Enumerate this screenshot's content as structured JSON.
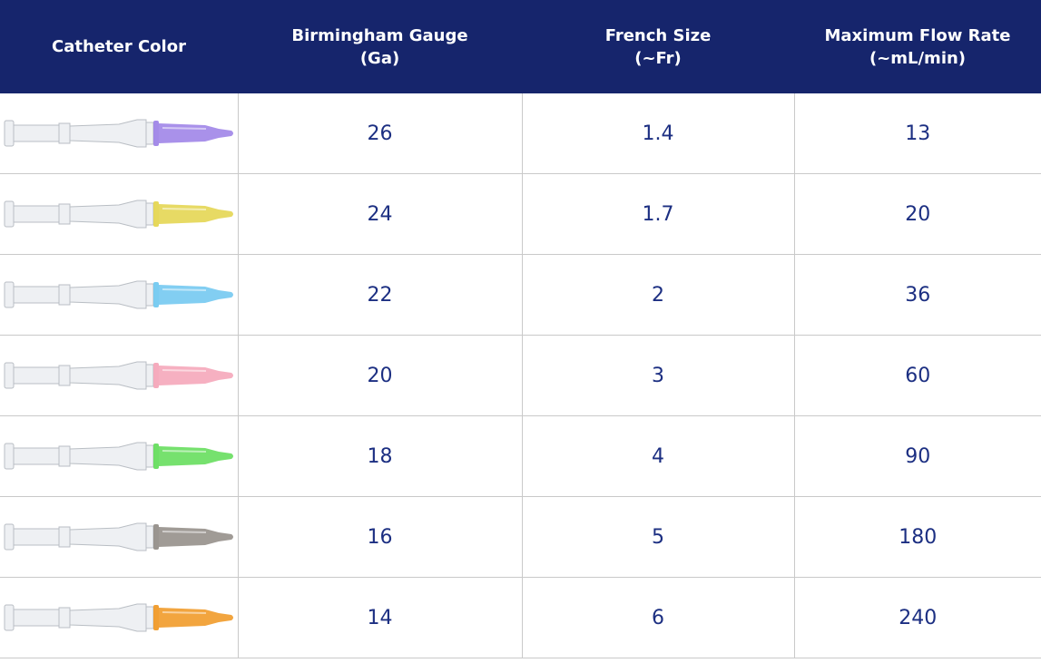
{
  "header": {
    "columns": [
      [
        "Catheter Color"
      ],
      [
        "Birmingham Gauge",
        "(Ga)"
      ],
      [
        "French Size",
        "(~Fr)"
      ],
      [
        "Maximum Flow Rate",
        "(~mL/min)"
      ]
    ]
  },
  "table": {
    "rows": [
      {
        "color": "#9a7ee6",
        "gauge": 26,
        "french": 1.4,
        "flow": 13
      },
      {
        "color": "#e3d449",
        "gauge": 24,
        "french": 1.7,
        "flow": 20
      },
      {
        "color": "#6cc6f0",
        "gauge": 22,
        "french": 2,
        "flow": 36
      },
      {
        "color": "#f4a2b6",
        "gauge": 20,
        "french": 3,
        "flow": 60
      },
      {
        "color": "#5edc55",
        "gauge": 18,
        "french": 4,
        "flow": 90
      },
      {
        "color": "#8f8a84",
        "gauge": 16,
        "french": 5,
        "flow": 180
      },
      {
        "color": "#f0951d",
        "gauge": 14,
        "french": 6,
        "flow": 240
      }
    ]
  }
}
